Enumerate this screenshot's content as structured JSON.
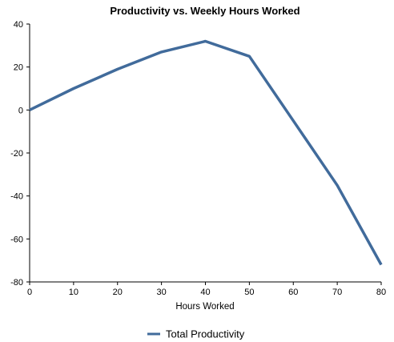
{
  "chart_data": {
    "type": "line",
    "title": "Productivity vs. Weekly Hours Worked",
    "xlabel": "Hours Worked",
    "ylabel": "",
    "x": [
      0,
      10,
      20,
      30,
      40,
      50,
      60,
      70,
      80
    ],
    "series": [
      {
        "name": "Total Productivity",
        "values": [
          0,
          10,
          19,
          27,
          32,
          25,
          -5,
          -35,
          -72
        ],
        "color": "#416b9b"
      }
    ],
    "xlim": [
      0,
      80
    ],
    "ylim": [
      -80,
      40
    ],
    "xticks": [
      "0",
      "10",
      "20",
      "30",
      "40",
      "50",
      "60",
      "70",
      "80"
    ],
    "yticks": [
      "40",
      "20",
      "0",
      "-20",
      "-40",
      "-60",
      "-80"
    ],
    "grid": false,
    "legend": "bottom-center"
  }
}
